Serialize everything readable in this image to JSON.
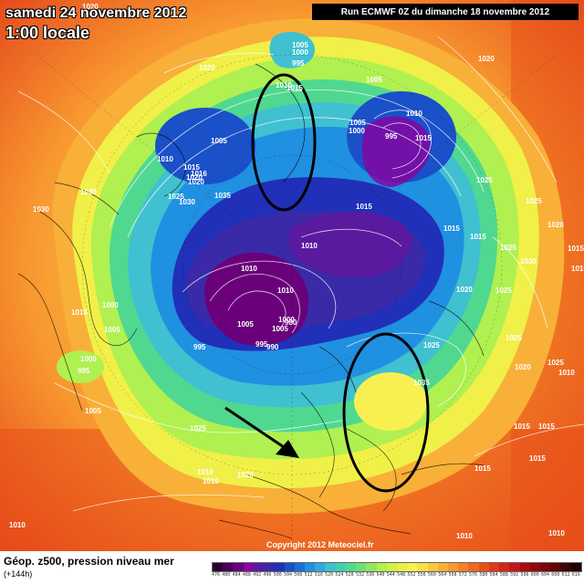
{
  "header": {
    "date_title": "samedi 24 novembre 2012",
    "time_title": "1:00 locale",
    "run_info": "Run ECMWF 0Z du dimanche 18 novembre 2012"
  },
  "footer": {
    "product": "Géop. z500, pression niveau mer",
    "lead_time": "(+144h)",
    "copyright": "Copyright 2012 Meteociel.fr"
  },
  "scale": {
    "values": [
      "476",
      "480",
      "484",
      "488",
      "492",
      "496",
      "500",
      "504",
      "508",
      "512",
      "516",
      "520",
      "524",
      "528",
      "532",
      "536",
      "540",
      "544",
      "548",
      "552",
      "556",
      "560",
      "564",
      "568",
      "572",
      "576",
      "580",
      "584",
      "588",
      "592",
      "596",
      "600",
      "604",
      "608",
      "612",
      "616"
    ],
    "colors": [
      "#2a0030",
      "#4a005a",
      "#6a007a",
      "#8a00a0",
      "#5a1aa0",
      "#3a2aa8",
      "#2030b8",
      "#1a50c8",
      "#1a70d8",
      "#2090e0",
      "#30a8e0",
      "#40c0d0",
      "#40d0b0",
      "#50d890",
      "#70e070",
      "#90e860",
      "#b0f050",
      "#d0f048",
      "#e8f048",
      "#f8f050",
      "#f8e048",
      "#f8c840",
      "#f8b038",
      "#f89830",
      "#f88028",
      "#f06820",
      "#e85018",
      "#e03818",
      "#d02818",
      "#c01818",
      "#a80c10",
      "#900810",
      "#780810",
      "#600808",
      "#400404",
      "#200000"
    ]
  },
  "isobar_labels": [
    {
      "text": "1005"
    },
    {
      "text": "1000"
    },
    {
      "text": "995"
    },
    {
      "text": "1010"
    },
    {
      "text": "1015"
    },
    {
      "text": "1020"
    },
    {
      "text": "1005"
    },
    {
      "text": "1010"
    },
    {
      "text": "1005"
    },
    {
      "text": "1000"
    },
    {
      "text": "995"
    },
    {
      "text": "1015"
    },
    {
      "text": "1010"
    },
    {
      "text": "1015"
    },
    {
      "text": "1020"
    },
    {
      "text": "1005"
    },
    {
      "text": "1016"
    },
    {
      "text": "1020"
    },
    {
      "text": "1030"
    },
    {
      "text": "1025"
    },
    {
      "text": "1030"
    },
    {
      "text": "1035"
    },
    {
      "text": "1030"
    },
    {
      "text": "1015"
    },
    {
      "text": "1025"
    },
    {
      "text": "1025"
    },
    {
      "text": "1015"
    },
    {
      "text": "1015"
    },
    {
      "text": "1010"
    },
    {
      "text": "1020"
    },
    {
      "text": "1025"
    },
    {
      "text": "1010"
    },
    {
      "text": "1030"
    },
    {
      "text": "1020"
    },
    {
      "text": "1025"
    },
    {
      "text": "1000"
    },
    {
      "text": "1010"
    },
    {
      "text": "1005"
    },
    {
      "text": "1010"
    },
    {
      "text": "1005"
    },
    {
      "text": "995"
    },
    {
      "text": "1000"
    },
    {
      "text": "995"
    },
    {
      "text": "990"
    },
    {
      "text": "980"
    },
    {
      "text": "1005"
    },
    {
      "text": "1025"
    },
    {
      "text": "1025"
    },
    {
      "text": "1035"
    },
    {
      "text": "1020"
    },
    {
      "text": "1000"
    },
    {
      "text": "995"
    },
    {
      "text": "1005"
    },
    {
      "text": "1025"
    },
    {
      "text": "1015"
    },
    {
      "text": "1010"
    },
    {
      "text": "1020"
    },
    {
      "text": "1015"
    },
    {
      "text": "1015"
    },
    {
      "text": "1010"
    },
    {
      "text": "1025"
    },
    {
      "text": "1015"
    },
    {
      "text": "1010"
    },
    {
      "text": "1010"
    },
    {
      "text": "1010"
    },
    {
      "text": "1020"
    },
    {
      "text": "1015"
    },
    {
      "text": "1015"
    },
    {
      "text": "1010"
    },
    {
      "text": "1020"
    }
  ]
}
